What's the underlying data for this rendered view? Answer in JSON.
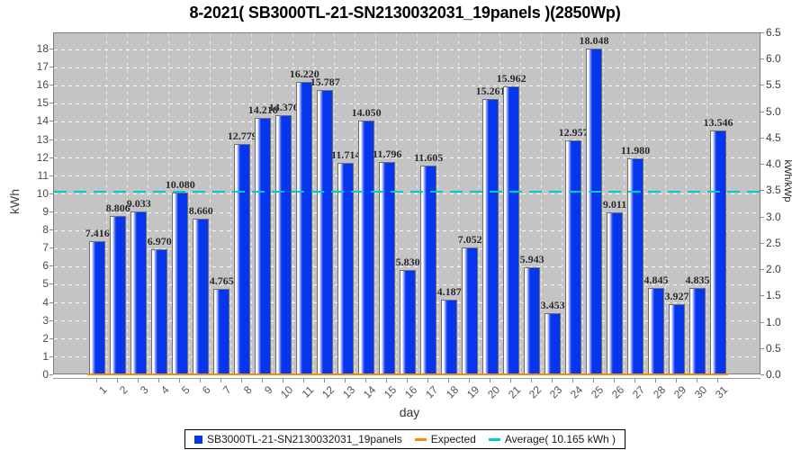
{
  "title": "8-2021( SB3000TL-21-SN2130032031_19panels )(2850Wp)",
  "chart_data": {
    "type": "bar",
    "title": "8-2021( SB3000TL-21-SN2130032031_19panels )(2850Wp)",
    "xlabel": "day",
    "ylabel_left": "kWh",
    "ylabel_right": "kWh/kWp",
    "categories": [
      1,
      2,
      3,
      4,
      5,
      6,
      7,
      8,
      9,
      10,
      11,
      12,
      13,
      14,
      15,
      16,
      17,
      18,
      19,
      20,
      21,
      22,
      23,
      24,
      25,
      26,
      27,
      28,
      29,
      30,
      31
    ],
    "series": [
      {
        "name": "SB3000TL-21-SN2130032031_19panels",
        "color": "#0535ec",
        "values": [
          7.416,
          8.806,
          9.033,
          6.97,
          10.08,
          8.66,
          4.765,
          12.779,
          14.216,
          14.376,
          16.22,
          15.787,
          11.714,
          14.05,
          11.796,
          5.83,
          11.605,
          4.187,
          7.052,
          15.261,
          15.962,
          5.943,
          3.453,
          12.957,
          18.048,
          9.011,
          11.98,
          4.845,
          3.927,
          4.835,
          13.546
        ]
      },
      {
        "name": "Expected",
        "color": "#ff8800",
        "baseline_value": 0
      }
    ],
    "average": {
      "label": "Average( 10.165 kWh )",
      "value": 10.165,
      "color": "#00cccc"
    },
    "y_left_axis": {
      "min": 0,
      "max": 18,
      "step": 1,
      "label": "kWh"
    },
    "y_right_axis": {
      "min": 0,
      "max": 6.5,
      "step": 0.5,
      "label": "kWh/kWp"
    },
    "grid": true,
    "plot_background": "#c4c4c4",
    "gridline_color": "#ffffff",
    "legend_position": "bottom"
  },
  "legend": {
    "series_label": "SB3000TL-21-SN2130032031_19panels",
    "expected_label": "Expected",
    "average_label": "Average( 10.165 kWh )"
  }
}
